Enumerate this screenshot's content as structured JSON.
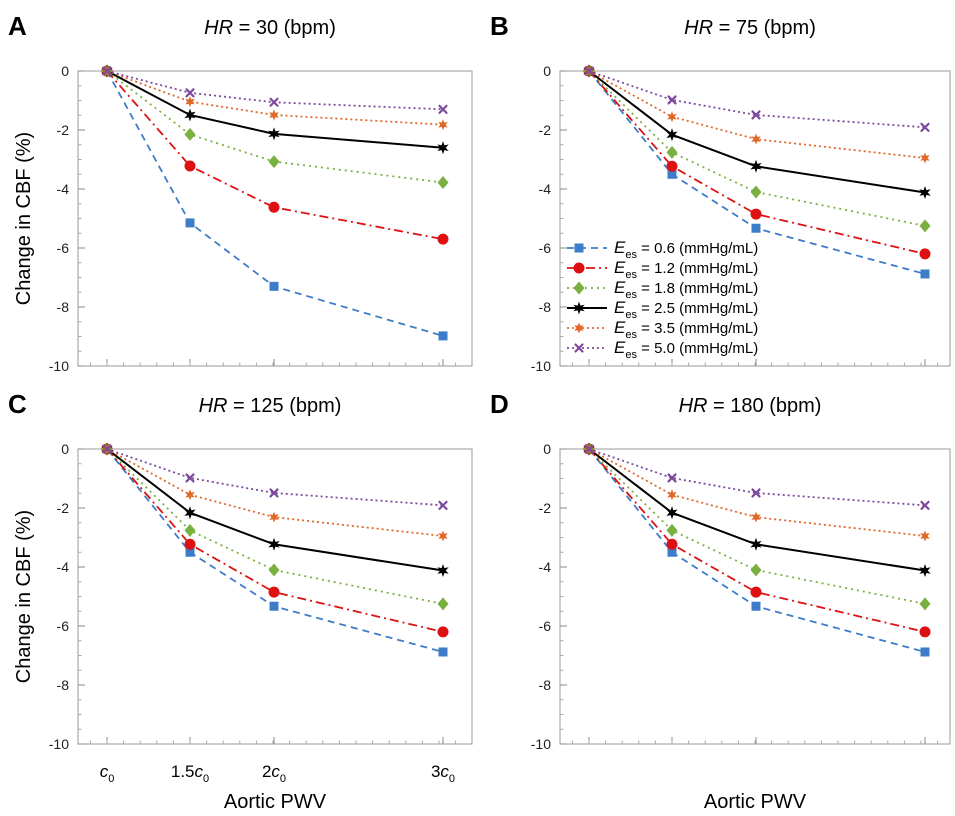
{
  "chart_data": {
    "type": "line",
    "ylabel": "Change in CBF (%)",
    "xlabel": "Aortic PWV",
    "ylim": [
      -10,
      0
    ],
    "yticks": [
      0,
      -2,
      -4,
      -6,
      -8,
      -10
    ],
    "x": [
      1,
      1.5,
      2,
      3
    ],
    "x_tick_labels": [
      {
        "pre": "",
        "base": "c",
        "sub": "0"
      },
      {
        "pre": "1.5",
        "base": "c",
        "sub": "0"
      },
      {
        "pre": "2",
        "base": "c",
        "sub": "0"
      },
      {
        "pre": "3",
        "base": "c",
        "sub": "0"
      }
    ],
    "legend": {
      "panel": "B",
      "placement": "bottom-left",
      "entries": [
        {
          "sym": "E",
          "sub": "es",
          "text": " = 0.6 (mmHg/mL)"
        },
        {
          "sym": "E",
          "sub": "es",
          "text": " = 1.2 (mmHg/mL)"
        },
        {
          "sym": "E",
          "sub": "es",
          "text": " = 1.8 (mmHg/mL)"
        },
        {
          "sym": "E",
          "sub": "es",
          "text": " = 2.5 (mmHg/mL)"
        },
        {
          "sym": "E",
          "sub": "es",
          "text": " = 3.5 (mmHg/mL)"
        },
        {
          "sym": "E",
          "sub": "es",
          "text": " = 5.0 (mmHg/mL)"
        }
      ]
    },
    "series_styles": [
      {
        "color": "#3d7cc9",
        "marker": "square",
        "dash": "7,5"
      },
      {
        "color": "#dd1111",
        "marker": "circle",
        "dash": "9,4,2,4"
      },
      {
        "color": "#7ab040",
        "marker": "diamond",
        "dash": "2,4"
      },
      {
        "color": "#000000",
        "marker": "star",
        "dash": ""
      },
      {
        "color": "#e0692a",
        "marker": "asterisk",
        "dash": "2,3"
      },
      {
        "color": "#7d4a9e",
        "marker": "cross",
        "dash": "2,3"
      }
    ],
    "panels": [
      {
        "letter": "A",
        "title": {
          "var": "HR",
          "rest": " = 30 (bpm)"
        },
        "series": [
          {
            "values": [
              0,
              -5.15,
              -7.3,
              -8.98
            ]
          },
          {
            "values": [
              0,
              -3.22,
              -4.62,
              -5.7
            ]
          },
          {
            "values": [
              0,
              -2.15,
              -3.07,
              -3.78
            ]
          },
          {
            "values": [
              0,
              -1.49,
              -2.13,
              -2.6
            ]
          },
          {
            "values": [
              0,
              -1.04,
              -1.49,
              -1.82
            ]
          },
          {
            "values": [
              0,
              -0.74,
              -1.06,
              -1.3
            ]
          }
        ]
      },
      {
        "letter": "B",
        "title": {
          "var": "HR",
          "rest": " = 75 (bpm)"
        },
        "series": [
          {
            "values": [
              0,
              -3.5,
              -5.33,
              -6.88
            ]
          },
          {
            "values": [
              0,
              -3.23,
              -4.85,
              -6.2
            ]
          },
          {
            "values": [
              0,
              -2.76,
              -4.1,
              -5.25
            ]
          },
          {
            "values": [
              0,
              -2.16,
              -3.23,
              -4.12
            ]
          },
          {
            "values": [
              0,
              -1.55,
              -2.31,
              -2.95
            ]
          },
          {
            "values": [
              0,
              -0.98,
              -1.49,
              -1.91
            ]
          }
        ]
      },
      {
        "letter": "C",
        "title": {
          "var": "HR",
          "rest": " = 125 (bpm)"
        },
        "series": [
          {
            "values": [
              0,
              -3.5,
              -5.33,
              -6.88
            ]
          },
          {
            "values": [
              0,
              -3.23,
              -4.85,
              -6.2
            ]
          },
          {
            "values": [
              0,
              -2.76,
              -4.1,
              -5.25
            ]
          },
          {
            "values": [
              0,
              -2.16,
              -3.23,
              -4.12
            ]
          },
          {
            "values": [
              0,
              -1.55,
              -2.31,
              -2.95
            ]
          },
          {
            "values": [
              0,
              -0.98,
              -1.49,
              -1.91
            ]
          }
        ]
      },
      {
        "letter": "D",
        "title": {
          "var": "HR",
          "rest": " = 180 (bpm)"
        },
        "series": [
          {
            "values": [
              0,
              -3.5,
              -5.33,
              -6.88
            ]
          },
          {
            "values": [
              0,
              -3.23,
              -4.85,
              -6.2
            ]
          },
          {
            "values": [
              0,
              -2.76,
              -4.1,
              -5.25
            ]
          },
          {
            "values": [
              0,
              -2.16,
              -3.23,
              -4.12
            ]
          },
          {
            "values": [
              0,
              -1.55,
              -2.31,
              -2.95
            ]
          },
          {
            "values": [
              0,
              -0.98,
              -1.49,
              -1.91
            ]
          }
        ]
      }
    ]
  }
}
